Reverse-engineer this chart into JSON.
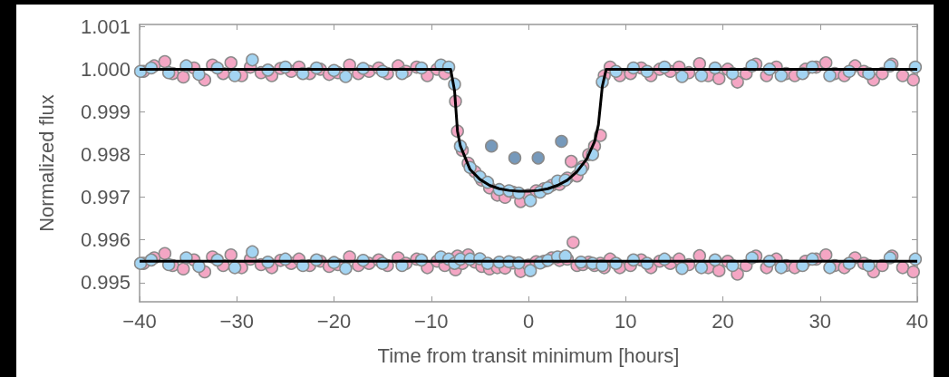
{
  "chart_data": {
    "type": "scatter",
    "xlabel": "Time from transit minimum [hours]",
    "ylabel": "Normalized flux",
    "xlim": [
      -40,
      40
    ],
    "xticks": [
      {
        "value": -40,
        "label": "−40"
      },
      {
        "value": -30,
        "label": "−30"
      },
      {
        "value": -20,
        "label": "−20"
      },
      {
        "value": -10,
        "label": "−10"
      },
      0,
      10,
      20,
      30,
      40
    ],
    "ylim": [
      0.99455,
      1.00105
    ],
    "yticks": [
      {
        "value": 0.995,
        "label": "0.995"
      },
      {
        "value": 0.996,
        "label": "0.996"
      },
      {
        "value": 0.997,
        "label": "0.997"
      },
      {
        "value": 0.998,
        "label": "0.998"
      },
      {
        "value": 0.999,
        "label": "0.999"
      },
      {
        "value": 1,
        "label": "1.000"
      },
      {
        "value": 1.001,
        "label": "1.001"
      }
    ],
    "grid": false,
    "marker": "circle",
    "series": [
      {
        "color": "#f4a6c4",
        "x": [
          -39.6,
          -38.5,
          -37.4,
          -36.6,
          -35.5,
          -34.4,
          -33.3,
          -32.5,
          -31.4,
          -30.6,
          -29.5,
          -28.6,
          -27.5,
          -26.4,
          -25.5,
          -24.4,
          -23.6,
          -22.5,
          -21.4,
          -20.5,
          -19.6,
          -18.4,
          -17.5,
          -16.4,
          -15.4,
          -14.5,
          -13.4,
          -12.6,
          -11.5,
          -10.4,
          -9.4,
          -8.6,
          -7.5,
          -7.3,
          -6.8,
          -6.2,
          -5.5,
          -4.8,
          -4.0,
          -3.2,
          -2.4,
          -1.6,
          -0.8,
          0.0,
          0.8,
          1.6,
          2.4,
          3.2,
          4.0,
          4.4,
          5.0,
          5.6,
          6.2,
          6.8,
          7.4,
          7.8,
          8.4,
          9.4,
          10.5,
          11.6,
          12.6,
          13.5,
          14.6,
          15.5,
          16.5,
          17.6,
          18.5,
          19.6,
          20.5,
          21.5,
          22.4,
          23.4,
          24.5,
          25.5,
          26.5,
          27.4,
          28.5,
          29.6,
          30.6,
          31.5,
          32.5,
          33.6,
          34.5,
          35.5,
          36.4,
          37.4,
          38.5,
          39.6
        ],
        "values": [
          0.99995,
          1.00008,
          1.00018,
          0.9999,
          0.99982,
          1.00003,
          0.99975,
          1.0001,
          0.9999,
          1.00015,
          0.99985,
          1.00005,
          0.99992,
          0.99985,
          1.00002,
          0.99995,
          1.00005,
          0.9999,
          1.0,
          0.99988,
          0.99992,
          1.0001,
          0.9999,
          0.99995,
          1.00003,
          0.9999,
          1.00008,
          0.99995,
          1.00005,
          0.99985,
          1.0,
          0.9999,
          0.99925,
          0.99855,
          0.9981,
          0.9978,
          0.9976,
          0.9974,
          0.99722,
          0.99705,
          0.997,
          0.99712,
          0.9969,
          0.99705,
          0.99715,
          0.9972,
          0.99728,
          0.9973,
          0.99745,
          0.99784,
          0.9975,
          0.99772,
          0.998,
          0.9982,
          0.99845,
          0.99985,
          1.00005,
          0.99985,
          0.9999,
          1.00003,
          0.99985,
          1.0,
          0.99995,
          1.00005,
          0.99992,
          1.00013,
          0.99985,
          0.99978,
          1.0,
          0.9997,
          0.9999,
          1.00012,
          0.99985,
          1.00005,
          0.9999,
          0.99985,
          1.0,
          1.00005,
          1.00015,
          0.9999,
          0.99985,
          1.00008,
          0.99995,
          0.99975,
          0.9999,
          1.00012,
          0.99985,
          0.99975
        ]
      },
      {
        "color": "#a3d4f2",
        "x": [
          -39.9,
          -38.8,
          -37.0,
          -35.2,
          -33.9,
          -32.0,
          -30.2,
          -28.4,
          -26.8,
          -25.0,
          -23.2,
          -21.8,
          -20.0,
          -18.8,
          -17.0,
          -15.0,
          -13.0,
          -11.0,
          -9.0,
          -8.2,
          -7.6,
          -7.0,
          -6.0,
          -5.0,
          -4.2,
          -3.0,
          -2.0,
          -1.0,
          0.2,
          1.2,
          2.0,
          3.0,
          3.8,
          5.4,
          6.6,
          7.6,
          9.0,
          10.8,
          12.2,
          14.0,
          15.8,
          17.8,
          19.2,
          21.0,
          23.0,
          24.8,
          26.0,
          28.2,
          29.2,
          31.0,
          33.0,
          35.0,
          37.2,
          39.8
        ],
        "values": [
          0.99995,
          1.00003,
          0.99992,
          1.00008,
          0.99988,
          1.00003,
          0.99985,
          1.00022,
          0.99998,
          1.00005,
          0.9999,
          1.00003,
          0.99997,
          0.99983,
          1.00002,
          0.99995,
          0.9999,
          1.00003,
          1.0001,
          1.00005,
          0.99965,
          0.9982,
          0.9977,
          0.99748,
          0.99735,
          0.99718,
          0.99715,
          0.9971,
          0.99692,
          0.99712,
          0.99722,
          0.99738,
          0.9974,
          0.99765,
          0.998,
          0.9997,
          0.99995,
          1.00003,
          0.99995,
          1.00005,
          0.99983,
          0.99985,
          1.00003,
          0.9999,
          1.00008,
          1.0,
          0.99985,
          0.9999,
          1.00005,
          0.99985,
          0.99995,
          0.9999,
          1.00008,
          1.00005
        ]
      },
      {
        "color": "#f4a6c4",
        "x": [
          -39.6,
          -38.5,
          -37.4,
          -36.6,
          -35.5,
          -34.4,
          -33.3,
          -32.5,
          -31.4,
          -30.6,
          -29.5,
          -28.6,
          -27.5,
          -26.4,
          -25.5,
          -24.4,
          -23.6,
          -22.5,
          -21.4,
          -20.5,
          -19.6,
          -18.4,
          -17.5,
          -16.4,
          -15.4,
          -14.5,
          -13.4,
          -12.6,
          -11.5,
          -10.4,
          -9.4,
          -8.6,
          -7.5,
          -7.3,
          -6.8,
          -6.2,
          -5.5,
          -4.8,
          -4.0,
          -3.2,
          -2.4,
          -1.6,
          -0.8,
          0.0,
          0.8,
          1.6,
          2.4,
          3.2,
          4.0,
          4.6,
          5.0,
          5.6,
          6.2,
          6.8,
          7.4,
          7.8,
          8.4,
          9.4,
          10.5,
          11.6,
          12.6,
          13.5,
          14.6,
          15.5,
          16.5,
          17.6,
          18.5,
          19.6,
          20.5,
          21.5,
          22.4,
          23.4,
          24.5,
          25.5,
          26.5,
          27.4,
          28.5,
          29.6,
          30.6,
          31.5,
          32.5,
          33.6,
          34.5,
          35.5,
          36.4,
          37.4,
          38.5,
          39.6
        ],
        "values": [
          0.99545,
          0.99558,
          0.99568,
          0.9954,
          0.99532,
          0.99553,
          0.99525,
          0.9956,
          0.9954,
          0.99565,
          0.99535,
          0.99555,
          0.99542,
          0.99535,
          0.99552,
          0.99545,
          0.99555,
          0.9954,
          0.9955,
          0.99538,
          0.99542,
          0.9956,
          0.9954,
          0.99545,
          0.99553,
          0.9954,
          0.99558,
          0.99545,
          0.99555,
          0.99535,
          0.9955,
          0.9954,
          0.9953,
          0.99562,
          0.99545,
          0.99565,
          0.99548,
          0.99538,
          0.99532,
          0.99535,
          0.99534,
          0.99546,
          0.99526,
          0.99541,
          0.99549,
          0.9955,
          0.99558,
          0.99552,
          0.99555,
          0.99594,
          0.9954,
          0.99542,
          0.99548,
          0.9954,
          0.99545,
          0.99535,
          0.99555,
          0.99535,
          0.9954,
          0.99553,
          0.99535,
          0.9955,
          0.99545,
          0.99555,
          0.99542,
          0.99563,
          0.99535,
          0.99528,
          0.9955,
          0.9952,
          0.9954,
          0.99562,
          0.99535,
          0.99555,
          0.9954,
          0.99535,
          0.9955,
          0.99555,
          0.99565,
          0.9954,
          0.99535,
          0.99558,
          0.99545,
          0.99525,
          0.9954,
          0.99562,
          0.99535,
          0.99525
        ]
      },
      {
        "color": "#a3d4f2",
        "x": [
          -39.9,
          -38.8,
          -37.0,
          -35.2,
          -33.9,
          -32.0,
          -30.2,
          -28.4,
          -26.8,
          -25.0,
          -23.2,
          -21.8,
          -20.0,
          -18.8,
          -17.0,
          -15.0,
          -13.0,
          -11.0,
          -9.0,
          -8.2,
          -7.6,
          -7.0,
          -6.0,
          -5.0,
          -4.2,
          -3.0,
          -2.0,
          -1.0,
          0.2,
          1.2,
          2.0,
          3.0,
          3.8,
          5.4,
          6.6,
          7.6,
          9.0,
          10.8,
          12.2,
          14.0,
          15.8,
          17.8,
          19.2,
          21.0,
          23.0,
          24.8,
          26.0,
          28.2,
          29.2,
          31.0,
          33.0,
          35.0,
          37.2,
          39.8
        ],
        "values": [
          0.99545,
          0.99553,
          0.99542,
          0.99558,
          0.99538,
          0.99553,
          0.99535,
          0.99572,
          0.99548,
          0.99555,
          0.9954,
          0.99553,
          0.99547,
          0.99533,
          0.99552,
          0.99545,
          0.9954,
          0.99553,
          0.9956,
          0.99555,
          0.99545,
          0.99555,
          0.99555,
          0.99556,
          0.99545,
          0.99548,
          0.99549,
          0.99546,
          0.99528,
          0.99546,
          0.99552,
          0.9956,
          0.99562,
          0.99548,
          0.99545,
          0.9954,
          0.99545,
          0.99553,
          0.99545,
          0.99555,
          0.99533,
          0.99535,
          0.99553,
          0.9954,
          0.99558,
          0.9955,
          0.99535,
          0.9954,
          0.99555,
          0.99535,
          0.99545,
          0.9954,
          0.99558,
          0.99555
        ]
      },
      {
        "type": "line",
        "marker": "none",
        "color": "#000000",
        "x": [
          -40,
          -8,
          -7.6,
          -7.3,
          -7,
          -6,
          -5,
          -4,
          -3,
          -2,
          -1,
          0,
          1,
          2,
          3,
          4,
          5,
          6,
          6.8,
          7.2,
          7.6,
          8,
          40
        ],
        "values": [
          1,
          1,
          0.9995,
          0.99855,
          0.9982,
          0.99765,
          0.99742,
          0.99728,
          0.9972,
          0.99716,
          0.99714,
          0.99714,
          0.99716,
          0.9972,
          0.99728,
          0.9974,
          0.9976,
          0.9979,
          0.9983,
          0.9987,
          0.9996,
          1,
          1
        ]
      },
      {
        "type": "line",
        "marker": "none",
        "color": "#000000",
        "x": [
          -40,
          40
        ],
        "values": [
          0.9955,
          0.9955
        ]
      },
      {
        "color": "#7699bb",
        "x": [
          -3.8,
          -1.4,
          1.0,
          3.4
        ],
        "values": [
          0.9982,
          0.99792,
          0.99792,
          0.99831
        ]
      }
    ]
  }
}
